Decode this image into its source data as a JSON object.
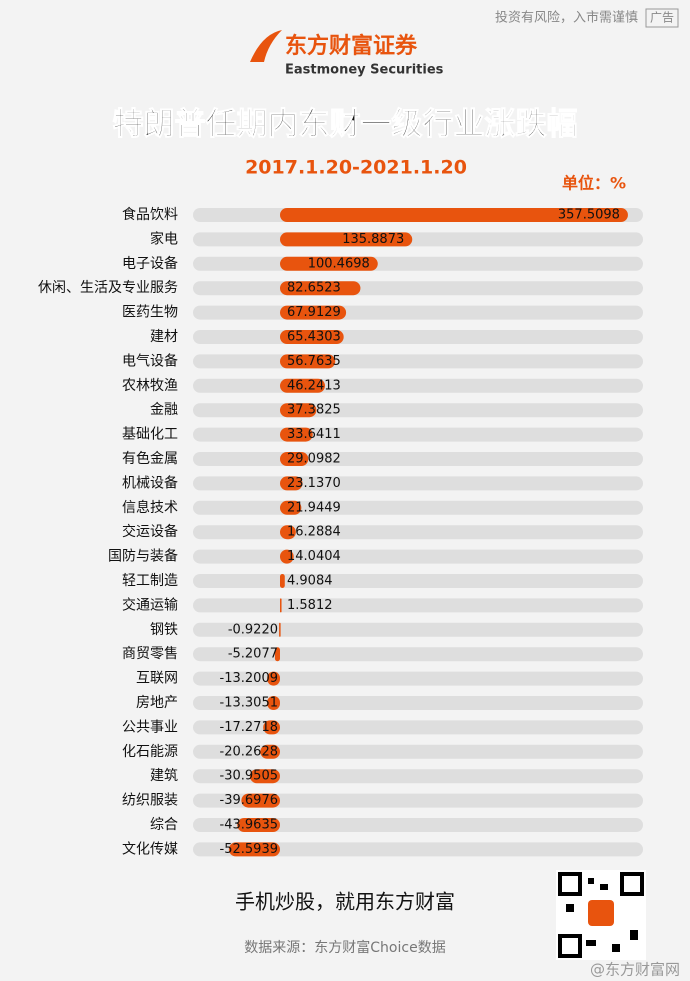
{
  "header": {
    "disclaimer": "投资有风险，入市需谨慎",
    "ad": "广告",
    "brand": "东方财富证券",
    "brand_en": "Eastmoney Securities"
  },
  "chart_data": {
    "type": "hbar",
    "title": "特朗普任期内东财一级行业涨跌幅",
    "subtitle": "2017.1.20-2021.1.20",
    "unit": "单位：%",
    "categories": [
      "食品饮料",
      "家电",
      "电子设备",
      "休闲、生活及专业服务",
      "医药生物",
      "建材",
      "电气设备",
      "农林牧渔",
      "金融",
      "基础化工",
      "有色金属",
      "机械设备",
      "信息技术",
      "交运设备",
      "国防与装备",
      "轻工制造",
      "交通运输",
      "钢铁",
      "商贸零售",
      "互联网",
      "房地产",
      "公共事业",
      "化石能源",
      "建筑",
      "纺织服装",
      "综合",
      "文化传媒"
    ],
    "values": [
      357.5098,
      135.8873,
      100.4698,
      82.6523,
      67.9129,
      65.4303,
      56.7635,
      46.2413,
      37.3825,
      33.6411,
      29.0982,
      23.137,
      21.9449,
      16.2884,
      14.0404,
      4.9084,
      1.5812,
      -0.922,
      -5.2077,
      -13.2009,
      -13.3051,
      -17.2718,
      -20.2628,
      -30.9505,
      -39.6976,
      -43.9635,
      -52.5939
    ],
    "value_labels": [
      "357.5098",
      "135.8873",
      "100.4698",
      "82.6523",
      "67.9129",
      "65.4303",
      "56.7635",
      "46.2413",
      "37.3825",
      "33.6411",
      "29.0982",
      "23.1370",
      "21.9449",
      "16.2884",
      "14.0404",
      "4.9084",
      "1.5812",
      "-0.9220",
      "-5.2077",
      "-13.2009",
      "-13.3051",
      "-17.2718",
      "-20.2628",
      "-30.9505",
      "-39.6976",
      "-43.9635",
      "-52.5939"
    ],
    "color": "#e8540e",
    "track_color": "#dedede",
    "xlim": [
      -89.4,
      373
    ]
  },
  "footer": {
    "slogan": "手机炒股，就用东方财富",
    "source": "数据来源：东方财富Choice数据",
    "watermark": "@东方财富网"
  }
}
